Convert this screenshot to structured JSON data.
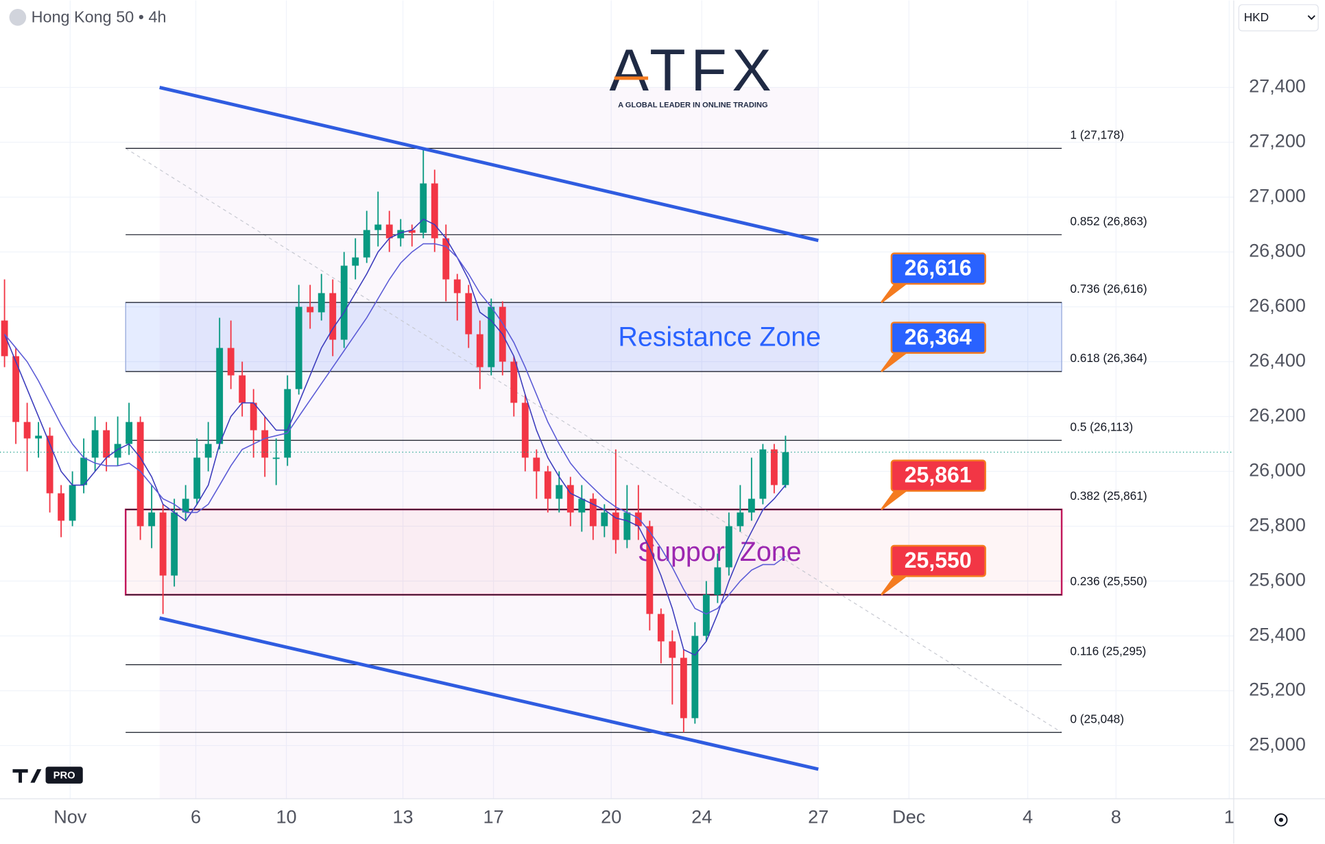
{
  "header": {
    "symbol": "Hong Kong 50 • 4h",
    "currency": "HKD"
  },
  "logo": {
    "name": "ATFX",
    "tagline": "A GLOBAL LEADER IN ONLINE TRADING",
    "badge": "PRO"
  },
  "chart_data": {
    "type": "candlestick",
    "x": [
      0,
      1,
      2,
      3,
      4,
      5,
      6,
      7,
      8,
      9,
      10,
      11,
      12,
      13,
      14,
      15,
      16,
      17,
      18,
      19,
      20,
      21,
      22,
      23,
      24,
      25,
      26,
      27,
      28,
      29,
      30,
      31,
      32,
      33,
      34,
      35,
      36,
      37,
      38,
      39,
      40,
      41,
      42,
      43,
      44,
      45,
      46,
      47,
      48,
      49,
      50,
      51,
      52,
      53,
      54,
      55,
      56,
      57,
      58,
      59,
      60,
      61,
      62,
      63,
      64,
      65,
      66,
      67,
      68,
      69
    ],
    "open": [
      26550,
      26420,
      26180,
      26120,
      26130,
      25920,
      25820,
      25950,
      26050,
      26150,
      26050,
      26100,
      26180,
      25800,
      25850,
      25620,
      25850,
      25900,
      26050,
      26100,
      26450,
      26350,
      26250,
      26150,
      26050,
      26050,
      26300,
      26600,
      26580,
      26650,
      26480,
      26750,
      26780,
      26880,
      26900,
      26850,
      26880,
      26870,
      27050,
      26850,
      26700,
      26650,
      26500,
      26380,
      26600,
      26400,
      26250,
      26050,
      26000,
      25900,
      25950,
      25850,
      25900,
      25800,
      25850,
      25750,
      25850,
      25800,
      25480,
      25380,
      25320,
      25100,
      25400,
      25550,
      25650,
      25800,
      25850,
      25900,
      26080,
      25950
    ],
    "high": [
      26700,
      26450,
      26250,
      26180,
      26160,
      25950,
      26000,
      26120,
      26200,
      26180,
      26200,
      26250,
      26200,
      25950,
      25880,
      25900,
      25950,
      26120,
      26180,
      26560,
      26550,
      26400,
      26300,
      26200,
      26120,
      26350,
      26680,
      26680,
      26720,
      26700,
      26800,
      26850,
      26950,
      27020,
      26950,
      26920,
      26900,
      27178,
      27100,
      26900,
      26720,
      26680,
      26550,
      26630,
      26620,
      26420,
      26280,
      26080,
      26020,
      26000,
      25980,
      25950,
      25920,
      25880,
      26080,
      25950,
      25950,
      25820,
      25500,
      25420,
      25350,
      25450,
      25600,
      25700,
      25850,
      25950,
      26050,
      26100,
      26100,
      26130
    ],
    "low": [
      26380,
      26100,
      26000,
      26050,
      25850,
      25760,
      25800,
      25920,
      26000,
      26000,
      26020,
      26060,
      25750,
      25720,
      25480,
      25580,
      25820,
      25880,
      26000,
      26080,
      26300,
      26200,
      26050,
      25980,
      25950,
      26020,
      26280,
      26520,
      26550,
      26420,
      26450,
      26700,
      26760,
      26820,
      26800,
      26820,
      26820,
      26850,
      26800,
      26620,
      26550,
      26450,
      26300,
      26350,
      26350,
      26200,
      26000,
      25900,
      25850,
      25850,
      25800,
      25780,
      25750,
      25760,
      25700,
      25720,
      25750,
      25420,
      25300,
      25150,
      25048,
      25080,
      25380,
      25520,
      25620,
      25780,
      25820,
      25880,
      25920,
      25940
    ],
    "close": [
      26420,
      26180,
      26120,
      26130,
      25920,
      25820,
      25950,
      26050,
      26150,
      26050,
      26100,
      26180,
      25800,
      25850,
      25620,
      25850,
      25900,
      26050,
      26100,
      26450,
      26350,
      26250,
      26150,
      26050,
      26050,
      26300,
      26600,
      26580,
      26650,
      26480,
      26750,
      26780,
      26880,
      26900,
      26850,
      26880,
      26870,
      27050,
      26850,
      26700,
      26650,
      26500,
      26380,
      26600,
      26400,
      26250,
      26050,
      26000,
      25900,
      25950,
      25850,
      25900,
      25800,
      25850,
      25750,
      25850,
      25800,
      25480,
      25380,
      25320,
      25100,
      25400,
      25550,
      25650,
      25800,
      25850,
      25900,
      26080,
      25950,
      26070
    ],
    "up_color": "#089981",
    "down_color": "#f23645",
    "series": [
      {
        "color": "#3d3dbd",
        "values": [
          26500,
          26400,
          26300,
          26200,
          26100,
          26000,
          25950,
          25950,
          26000,
          26050,
          26080,
          26100,
          26050,
          25980,
          25880,
          25850,
          25820,
          25880,
          25950,
          26100,
          26200,
          26250,
          26250,
          26200,
          26150,
          26150,
          26250,
          26350,
          26450,
          26520,
          26580,
          26650,
          26720,
          26800,
          26850,
          26870,
          26880,
          26920,
          26900,
          26850,
          26780,
          26700,
          26580,
          26550,
          26500,
          26420,
          26280,
          26150,
          26050,
          25980,
          25920,
          25900,
          25880,
          25860,
          25830,
          25820,
          25800,
          25720,
          25620,
          25500,
          25350,
          25330,
          25380,
          25480,
          25600,
          25700,
          25780,
          25860,
          25900,
          25950
        ]
      },
      {
        "color": "#5b5bd6",
        "values": [
          26500,
          26450,
          26400,
          26330,
          26250,
          26170,
          26100,
          26050,
          26030,
          26020,
          26020,
          26030,
          26000,
          25950,
          25900,
          25880,
          25850,
          25850,
          25880,
          25950,
          26020,
          26080,
          26100,
          26120,
          26130,
          26140,
          26200,
          26260,
          26320,
          26380,
          26440,
          26500,
          26560,
          26630,
          26700,
          26760,
          26800,
          26830,
          26830,
          26820,
          26780,
          26720,
          26650,
          26600,
          26540,
          26470,
          26380,
          26280,
          26180,
          26100,
          26030,
          25980,
          25940,
          25900,
          25870,
          25850,
          25830,
          25780,
          25720,
          25650,
          25570,
          25500,
          25480,
          25500,
          25550,
          25600,
          25640,
          25660,
          25660,
          25690
        ]
      }
    ],
    "xlim": [
      -0.4,
      108.6
    ],
    "xticks": [
      {
        "value": 5.8,
        "label": "Nov"
      },
      {
        "value": 16.9,
        "label": "6"
      },
      {
        "value": 24.9,
        "label": "10"
      },
      {
        "value": 35.2,
        "label": "13"
      },
      {
        "value": 43.2,
        "label": "17"
      },
      {
        "value": 53.6,
        "label": "20"
      },
      {
        "value": 61.6,
        "label": "24"
      },
      {
        "value": 71.9,
        "label": "27"
      },
      {
        "value": 79.9,
        "label": "Dec"
      },
      {
        "value": 90.4,
        "label": "4"
      },
      {
        "value": 98.2,
        "label": "8"
      },
      {
        "value": 108.2,
        "label": "1"
      }
    ],
    "ylim": [
      24806,
      27594
    ],
    "yticks": [
      {
        "value": 25000,
        "label": "25,000"
      },
      {
        "value": 25200,
        "label": "25,200"
      },
      {
        "value": 25400,
        "label": "25,400"
      },
      {
        "value": 25600,
        "label": "25,600"
      },
      {
        "value": 25800,
        "label": "25,800"
      },
      {
        "value": 26000,
        "label": "26,000"
      },
      {
        "value": 26200,
        "label": "26,200"
      },
      {
        "value": 26400,
        "label": "26,400"
      },
      {
        "value": 26600,
        "label": "26,600"
      },
      {
        "value": 26800,
        "label": "26,800"
      },
      {
        "value": 27000,
        "label": "27,000"
      },
      {
        "value": 27200,
        "label": "27,200"
      },
      {
        "value": 27400,
        "label": "27,400"
      }
    ],
    "grid": true,
    "fib_x": [
      10.7,
      93.4
    ],
    "fib_levels": [
      {
        "value": 27178,
        "label": "1 (27,178)"
      },
      {
        "value": 26863,
        "label": "0.852 (26,863)"
      },
      {
        "value": 26616,
        "label": "0.736 (26,616)"
      },
      {
        "value": 26364,
        "label": "0.618 (26,364)"
      },
      {
        "value": 26113,
        "label": "0.5 (26,113)"
      },
      {
        "value": 25861,
        "label": "0.382 (25,861)"
      },
      {
        "value": 25550,
        "label": "0.236 (25,550)"
      },
      {
        "value": 25295,
        "label": "0.116 (25,295)"
      },
      {
        "value": 25048,
        "label": "0 (25,048)"
      }
    ],
    "zones": [
      {
        "name": "Resistance Zone",
        "low": 26364,
        "high": 26616,
        "color": "#2962ff"
      },
      {
        "name": "Support Zone",
        "low": 25550,
        "high": 25861,
        "color": "#9c27b0"
      }
    ],
    "callouts": [
      {
        "value": 26616,
        "label": "26,616",
        "color": "#2962ff"
      },
      {
        "value": 26364,
        "label": "26,364",
        "color": "#2962ff"
      },
      {
        "value": 25861,
        "label": "25,861",
        "color": "#f23645"
      },
      {
        "value": 25550,
        "label": "25,550",
        "color": "#f23645"
      }
    ],
    "channel": {
      "x": [
        13.7,
        71.9
      ],
      "upper": [
        27400,
        26842
      ],
      "lower": [
        25465,
        24914
      ],
      "color": "#2f5ce0"
    }
  }
}
